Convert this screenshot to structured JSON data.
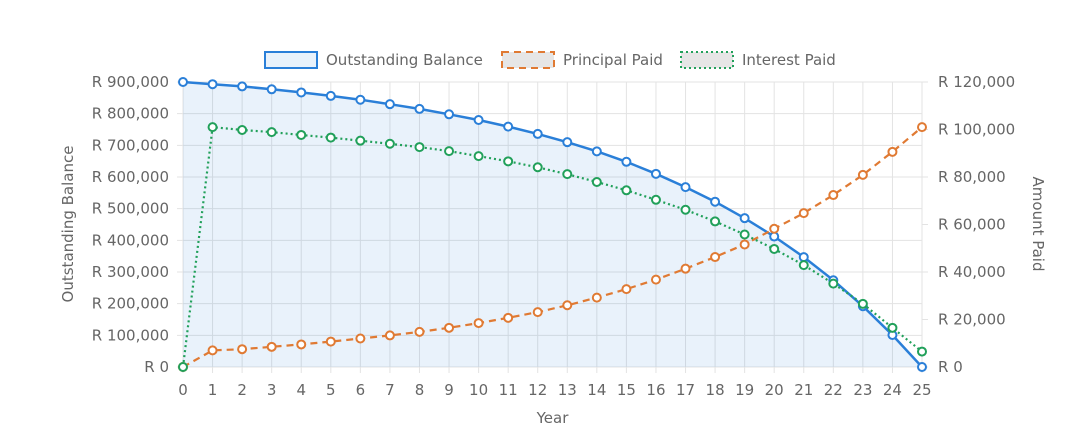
{
  "chart_data": {
    "type": "line",
    "xlabel": "Year",
    "ylabel_left": "Outstanding Balance",
    "ylabel_right": "Amount Paid",
    "x": [
      0,
      1,
      2,
      3,
      4,
      5,
      6,
      7,
      8,
      9,
      10,
      11,
      12,
      13,
      14,
      15,
      16,
      17,
      18,
      19,
      20,
      21,
      22,
      23,
      24,
      25
    ],
    "xlim": [
      0,
      25
    ],
    "ylim_left": [
      0,
      900000
    ],
    "ylim_right": [
      0,
      120000
    ],
    "yticks_left": [
      "R 0",
      "R 100,000",
      "R 200,000",
      "R 300,000",
      "R 400,000",
      "R 500,000",
      "R 600,000",
      "R 700,000",
      "R 800,000",
      "R 900,000"
    ],
    "yticks_right": [
      "R 0",
      "R 20,000",
      "R 40,000",
      "R 60,000",
      "R 80,000",
      "R 100,000",
      "R 120,000"
    ],
    "grid": true,
    "legend_position": "top-center",
    "series": [
      {
        "name": "Outstanding Balance",
        "axis": "left",
        "style": "solid",
        "fill": true,
        "color": "#2a7fd8",
        "values": [
          900000,
          893000,
          886000,
          877000,
          867000,
          856000,
          844000,
          830000,
          815000,
          798000,
          780000,
          759000,
          736000,
          710000,
          681000,
          648000,
          610000,
          568000,
          522000,
          470000,
          412000,
          347000,
          274000,
          192000,
          101000,
          0
        ]
      },
      {
        "name": "Principal Paid",
        "axis": "right",
        "style": "dashed",
        "fill": false,
        "color": "#e07a33",
        "values": [
          0,
          7000,
          7500,
          8500,
          9500,
          10700,
          12000,
          13300,
          14800,
          16500,
          18500,
          20700,
          23100,
          26000,
          29200,
          32800,
          36800,
          41400,
          46300,
          51600,
          58200,
          64800,
          72400,
          80900,
          90600,
          101000
        ]
      },
      {
        "name": "Interest Paid",
        "axis": "right",
        "style": "dotted",
        "fill": false,
        "color": "#21a05a",
        "values": [
          0,
          101000,
          99800,
          98900,
          97700,
          96600,
          95300,
          94000,
          92600,
          90900,
          88800,
          86600,
          84100,
          81200,
          77900,
          74400,
          70400,
          66200,
          61300,
          55800,
          49700,
          42900,
          35100,
          26600,
          16500,
          6500
        ]
      }
    ]
  }
}
